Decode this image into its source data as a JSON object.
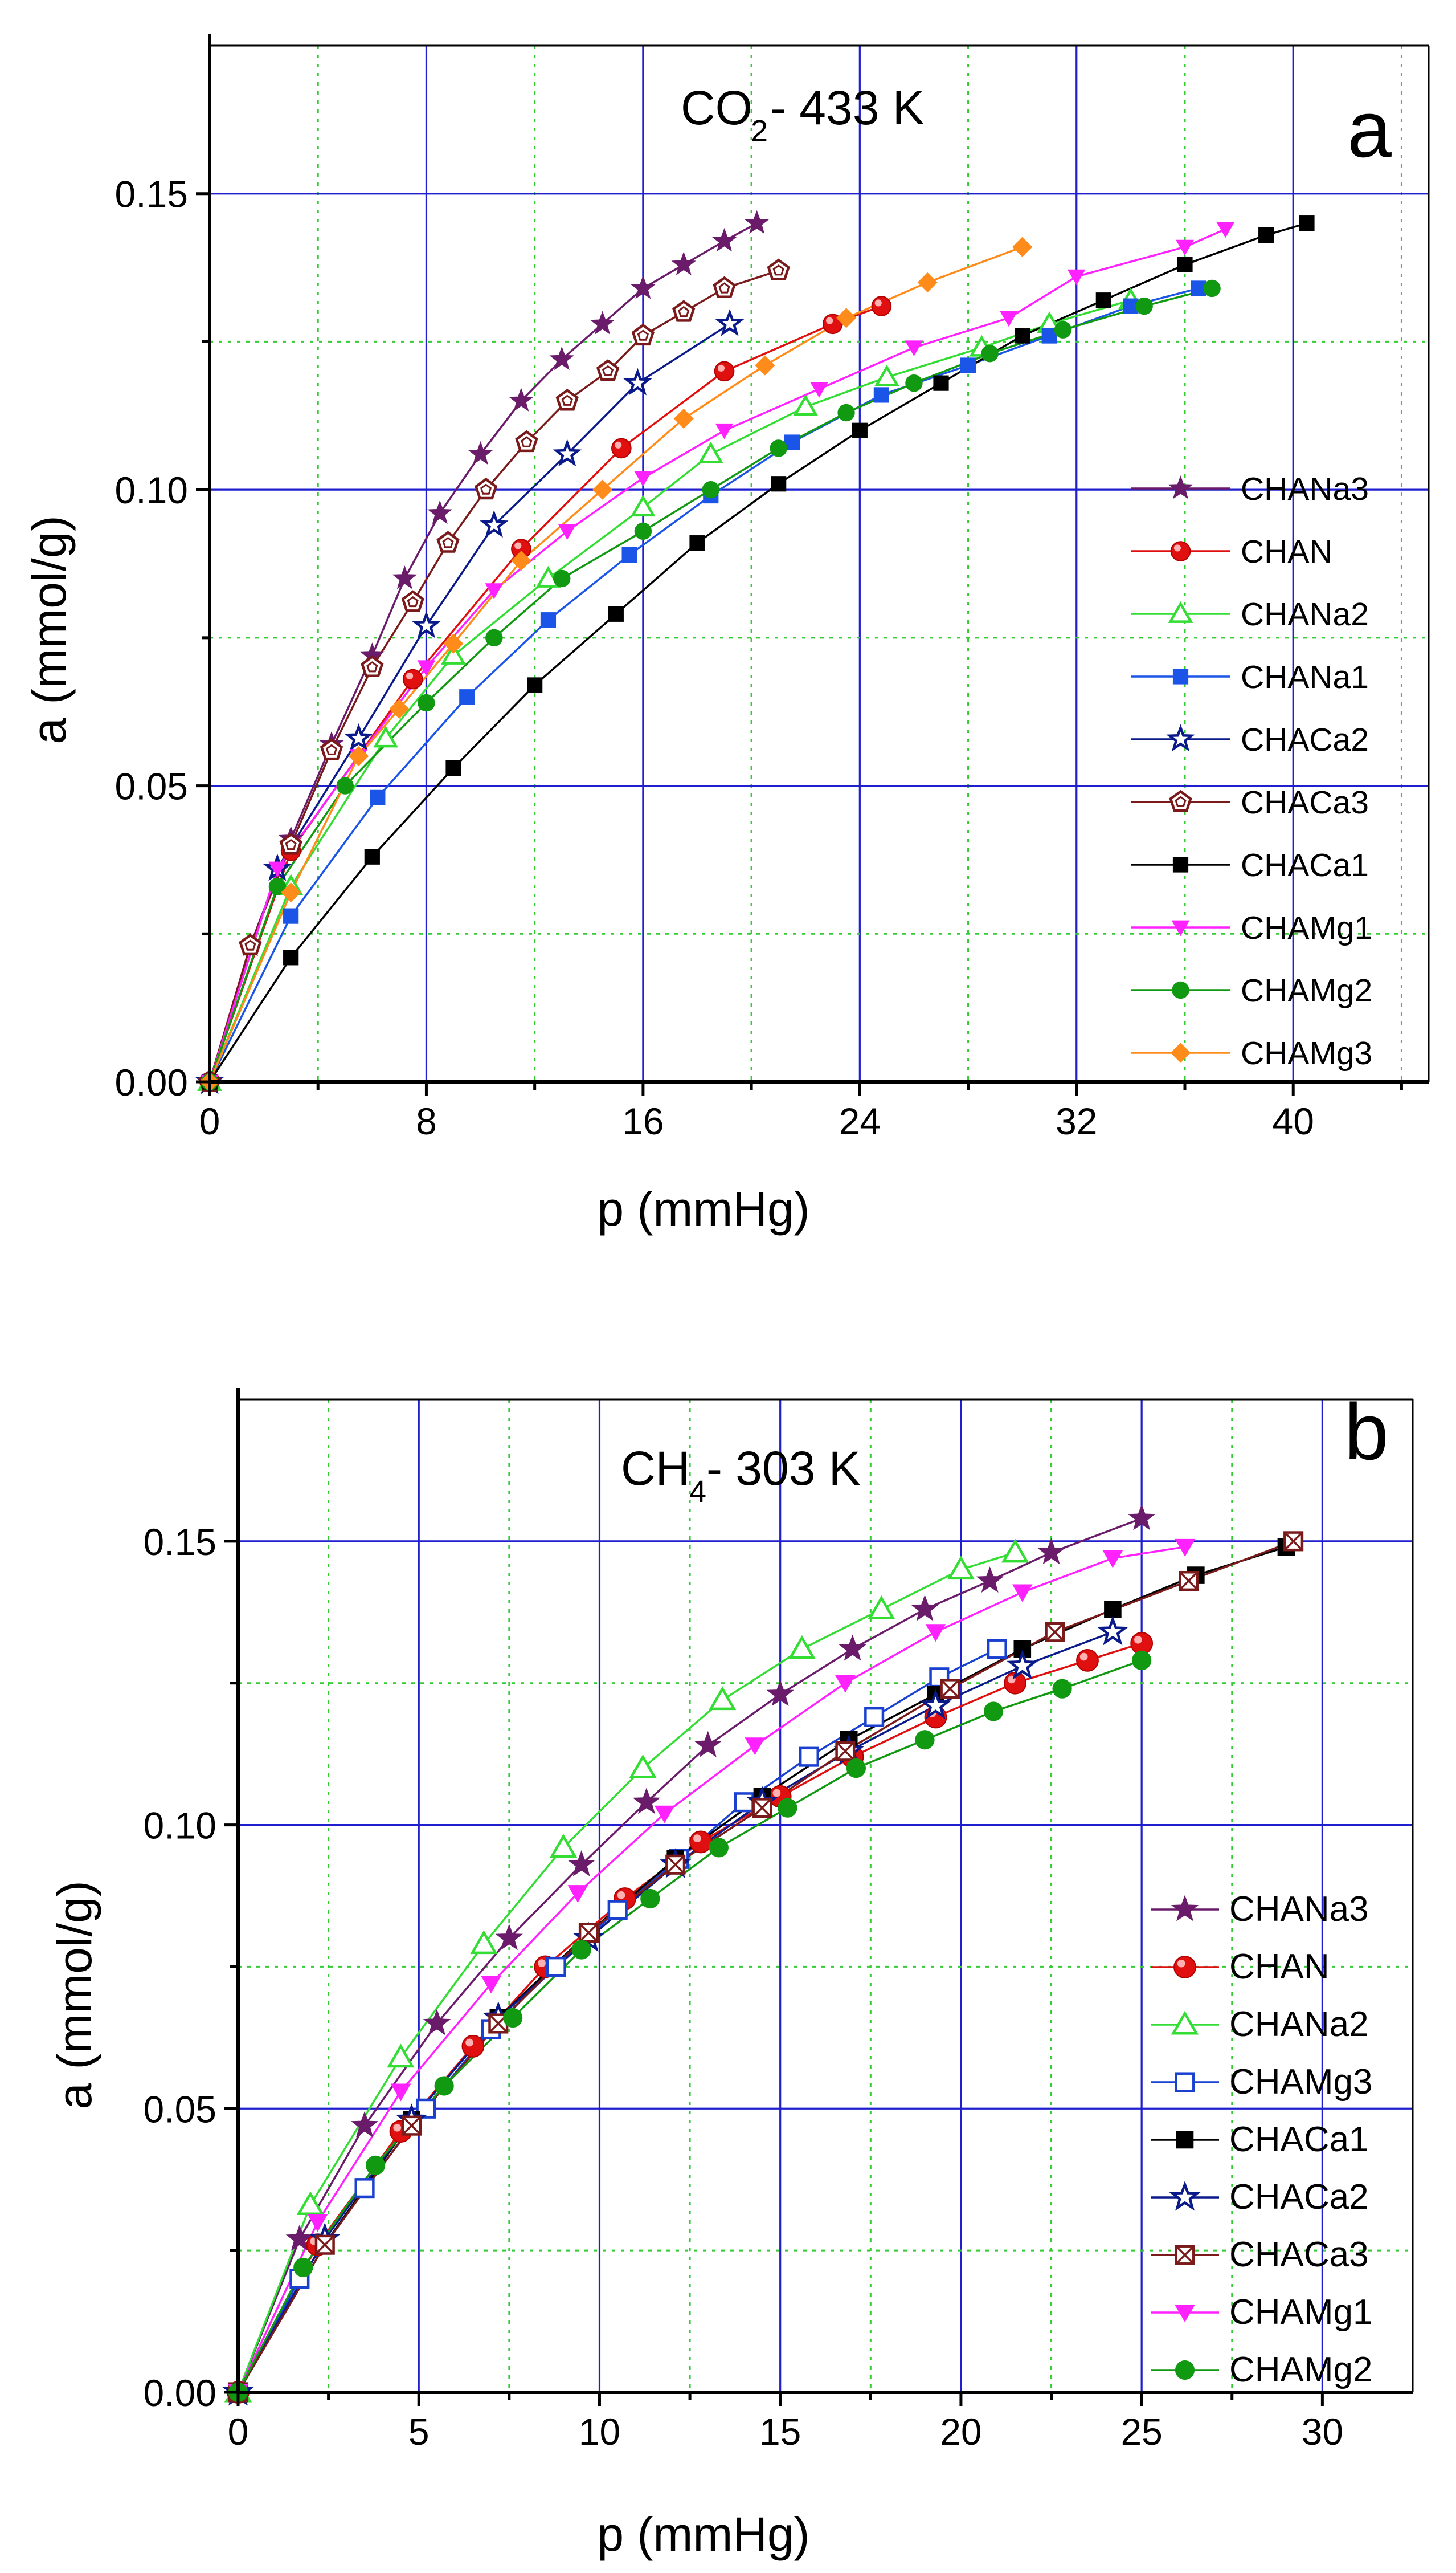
{
  "chart_data": [
    {
      "type": "line",
      "panel_label": "a",
      "title": {
        "gas": "CO",
        "subscript": "2",
        "rest": "- 433 K"
      },
      "xlabel": "p (mmHg)",
      "ylabel": "a (mmol/g)",
      "xlim": [
        0,
        45
      ],
      "ylim": [
        0,
        0.175
      ],
      "xticks": [
        0,
        8,
        16,
        24,
        32,
        40
      ],
      "xtick_labels": [
        "0",
        "8",
        "16",
        "24",
        "32",
        "40"
      ],
      "yticks": [
        0,
        0.05,
        0.1,
        0.15
      ],
      "ytick_labels": [
        "0.00",
        "0.05",
        "0.10",
        "0.15"
      ],
      "grid": true,
      "legend_position": "right",
      "series": [
        {
          "name": "CHANa3",
          "color": "#6a1b6a",
          "marker": "star-filled",
          "x": [
            0,
            1.5,
            3,
            4.5,
            6,
            7.2,
            8.5,
            10,
            11.5,
            13,
            14.5,
            16,
            17.5,
            19,
            20.2
          ],
          "y": [
            0,
            0.023,
            0.041,
            0.057,
            0.072,
            0.085,
            0.096,
            0.106,
            0.115,
            0.122,
            0.128,
            0.134,
            0.138,
            0.142,
            0.145
          ]
        },
        {
          "name": "CHAN",
          "color": "#e01010",
          "marker": "circle-ball",
          "x": [
            0,
            3,
            7.5,
            11.5,
            15.2,
            19,
            23,
            24.8
          ],
          "y": [
            0,
            0.039,
            0.068,
            0.09,
            0.107,
            0.12,
            0.128,
            0.131
          ]
        },
        {
          "name": "CHANa2",
          "color": "#33dd33",
          "marker": "triangle-open",
          "x": [
            0,
            3,
            6.5,
            9,
            12.5,
            16,
            18.5,
            22,
            25,
            28.5,
            31,
            34
          ],
          "y": [
            0,
            0.033,
            0.058,
            0.072,
            0.085,
            0.097,
            0.106,
            0.114,
            0.119,
            0.124,
            0.128,
            0.132
          ]
        },
        {
          "name": "CHANa1",
          "color": "#1a55e8",
          "marker": "square-filled",
          "x": [
            0,
            3,
            6.2,
            9.5,
            12.5,
            15.5,
            18.5,
            21.5,
            24.8,
            28,
            31,
            34,
            36.5
          ],
          "y": [
            0,
            0.028,
            0.048,
            0.065,
            0.078,
            0.089,
            0.099,
            0.108,
            0.116,
            0.121,
            0.126,
            0.131,
            0.134
          ]
        },
        {
          "name": "CHACa2",
          "color": "#0a1a8a",
          "marker": "star-open",
          "x": [
            0,
            2.5,
            5.5,
            8,
            10.5,
            13.2,
            15.8,
            19.2
          ],
          "y": [
            0,
            0.036,
            0.058,
            0.077,
            0.094,
            0.106,
            0.118,
            0.128
          ]
        },
        {
          "name": "CHACa3",
          "color": "#7a1a1a",
          "marker": "pentagon-open",
          "x": [
            0,
            1.5,
            3,
            4.5,
            6,
            7.5,
            8.8,
            10.2,
            11.7,
            13.2,
            14.7,
            16,
            17.5,
            19,
            21
          ],
          "y": [
            0,
            0.023,
            0.04,
            0.056,
            0.07,
            0.081,
            0.091,
            0.1,
            0.108,
            0.115,
            0.12,
            0.126,
            0.13,
            0.134,
            0.137
          ]
        },
        {
          "name": "CHACa1",
          "color": "#000000",
          "marker": "square-filled",
          "x": [
            0,
            3,
            6,
            9,
            12,
            15,
            18,
            21,
            24,
            27,
            30,
            33,
            36,
            39,
            40.5
          ],
          "y": [
            0,
            0.021,
            0.038,
            0.053,
            0.067,
            0.079,
            0.091,
            0.101,
            0.11,
            0.118,
            0.126,
            0.132,
            0.138,
            0.143,
            0.145
          ]
        },
        {
          "name": "CHAMg1",
          "color": "#ff22ff",
          "marker": "triangle-down-filled",
          "x": [
            0,
            2.5,
            5.5,
            8,
            10.5,
            13.2,
            16,
            19,
            22.5,
            26,
            29.5,
            32,
            36,
            37.5
          ],
          "y": [
            0,
            0.036,
            0.055,
            0.07,
            0.083,
            0.093,
            0.102,
            0.11,
            0.117,
            0.124,
            0.129,
            0.136,
            0.141,
            0.144
          ]
        },
        {
          "name": "CHAMg2",
          "color": "#119911",
          "marker": "circle-filled",
          "x": [
            0,
            2.5,
            5,
            8,
            10.5,
            13,
            16,
            18.5,
            21,
            23.5,
            26,
            28.8,
            31.5,
            34.5,
            37
          ],
          "y": [
            0,
            0.033,
            0.05,
            0.064,
            0.075,
            0.085,
            0.093,
            0.1,
            0.107,
            0.113,
            0.118,
            0.123,
            0.127,
            0.131,
            0.134
          ]
        },
        {
          "name": "CHAMg3",
          "color": "#ff8c1a",
          "marker": "diamond-filled",
          "x": [
            0,
            3,
            5.5,
            7,
            9,
            11.5,
            14.5,
            17.5,
            20.5,
            23.5,
            26.5,
            30
          ],
          "y": [
            0,
            0.032,
            0.055,
            0.063,
            0.074,
            0.088,
            0.1,
            0.112,
            0.121,
            0.129,
            0.135,
            0.141
          ]
        }
      ]
    },
    {
      "type": "line",
      "panel_label": "b",
      "title": {
        "gas": "CH",
        "subscript": "4",
        "rest": " - 303 K"
      },
      "xlabel": "p (mmHg)",
      "ylabel": "a (mmol/g)",
      "xlim": [
        0,
        32.5
      ],
      "ylim": [
        0,
        0.175
      ],
      "xticks": [
        0,
        5,
        10,
        15,
        20,
        25,
        30
      ],
      "xtick_labels": [
        "0",
        "5",
        "10",
        "15",
        "20",
        "25",
        "30"
      ],
      "yticks": [
        0,
        0.05,
        0.1,
        0.15
      ],
      "ytick_labels": [
        "0.00",
        "0.05",
        "0.10",
        "0.15"
      ],
      "grid": true,
      "legend_position": "right",
      "series": [
        {
          "name": "CHANa3",
          "color": "#6a1b6a",
          "marker": "star-filled",
          "x": [
            0,
            1.7,
            3.5,
            5.5,
            7.5,
            9.5,
            11.3,
            13,
            15,
            17,
            19,
            20.8,
            22.5,
            25
          ],
          "y": [
            0,
            0.027,
            0.047,
            0.065,
            0.08,
            0.093,
            0.104,
            0.114,
            0.123,
            0.131,
            0.138,
            0.143,
            0.148,
            0.154
          ]
        },
        {
          "name": "CHAN",
          "color": "#e01010",
          "marker": "circle-ball",
          "x": [
            0,
            2.2,
            4.5,
            6.5,
            8.5,
            10.7,
            12.8,
            15,
            17,
            19.3,
            21.5,
            23.5,
            25
          ],
          "y": [
            0,
            0.026,
            0.046,
            0.061,
            0.075,
            0.087,
            0.097,
            0.105,
            0.112,
            0.119,
            0.125,
            0.129,
            0.132
          ]
        },
        {
          "name": "CHANa2",
          "color": "#33dd33",
          "marker": "triangle-open",
          "x": [
            0,
            2,
            4.5,
            6.8,
            9,
            11.2,
            13.4,
            15.6,
            17.8,
            20,
            21.5
          ],
          "y": [
            0,
            0.033,
            0.059,
            0.079,
            0.096,
            0.11,
            0.122,
            0.131,
            0.138,
            0.145,
            0.148
          ]
        },
        {
          "name": "CHAMg3",
          "color": "#1a40d0",
          "marker": "square-open",
          "x": [
            0,
            1.7,
            3.5,
            5.2,
            7,
            8.8,
            10.5,
            12.2,
            14,
            15.8,
            17.6,
            19.4,
            21
          ],
          "y": [
            0,
            0.02,
            0.036,
            0.05,
            0.064,
            0.075,
            0.085,
            0.094,
            0.104,
            0.112,
            0.119,
            0.126,
            0.131
          ]
        },
        {
          "name": "CHACa1",
          "color": "#000000",
          "marker": "square-filled",
          "x": [
            0,
            2.4,
            4.8,
            7.2,
            9.7,
            12.1,
            14.5,
            16.9,
            19.3,
            21.7,
            24.2,
            26.5,
            29
          ],
          "y": [
            0,
            0.026,
            0.048,
            0.066,
            0.081,
            0.094,
            0.105,
            0.115,
            0.123,
            0.131,
            0.138,
            0.144,
            0.149
          ]
        },
        {
          "name": "CHACa2",
          "color": "#0a1a8a",
          "marker": "star-open",
          "x": [
            0,
            2.4,
            4.8,
            7.2,
            9.7,
            12.1,
            14.5,
            16.9,
            19.3,
            21.7,
            24.2
          ],
          "y": [
            0,
            0.027,
            0.048,
            0.066,
            0.08,
            0.093,
            0.104,
            0.113,
            0.121,
            0.128,
            0.134
          ]
        },
        {
          "name": "CHACa3",
          "color": "#7a1a1a",
          "marker": "square-cross",
          "x": [
            0,
            2.4,
            4.8,
            7.2,
            9.7,
            12.1,
            14.5,
            16.8,
            19.7,
            22.6,
            26.3,
            29.2
          ],
          "y": [
            0,
            0.026,
            0.047,
            0.065,
            0.081,
            0.093,
            0.103,
            0.113,
            0.124,
            0.134,
            0.143,
            0.15
          ]
        },
        {
          "name": "CHAMg1",
          "color": "#ff22ff",
          "marker": "triangle-down-filled",
          "x": [
            0,
            2.2,
            4.5,
            7,
            9.4,
            11.8,
            14.3,
            16.8,
            19.3,
            21.7,
            24.2,
            26.2
          ],
          "y": [
            0,
            0.03,
            0.053,
            0.072,
            0.088,
            0.102,
            0.114,
            0.125,
            0.134,
            0.141,
            0.147,
            0.149
          ]
        },
        {
          "name": "CHAMg2",
          "color": "#119911",
          "marker": "circle-filled",
          "x": [
            0,
            1.8,
            3.8,
            5.7,
            7.6,
            9.5,
            11.4,
            13.3,
            15.2,
            17.1,
            19,
            20.9,
            22.8,
            25
          ],
          "y": [
            0,
            0.022,
            0.04,
            0.054,
            0.066,
            0.078,
            0.087,
            0.096,
            0.103,
            0.11,
            0.115,
            0.12,
            0.124,
            0.129
          ]
        }
      ]
    }
  ]
}
